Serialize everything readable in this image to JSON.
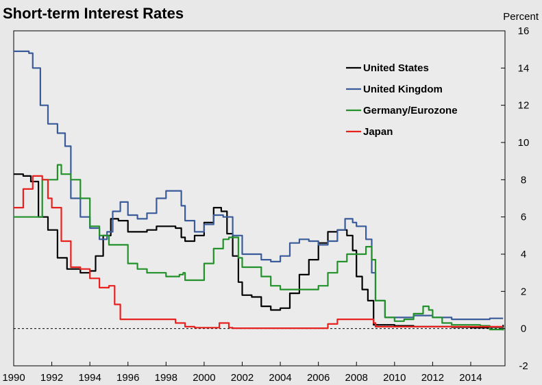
{
  "chart_data": {
    "type": "line",
    "title": "Short-term Interest Rates",
    "ylabel": "Percent",
    "xlabel": "",
    "xlim": [
      1990,
      2015.8
    ],
    "ylim": [
      -2,
      16
    ],
    "x_ticks": [
      1990,
      1992,
      1994,
      1996,
      1998,
      2000,
      2002,
      2004,
      2006,
      2008,
      2010,
      2012,
      2014
    ],
    "x_tick_labels": [
      "1990",
      "1992",
      "1994",
      "1996",
      "1998",
      "2000",
      "2002",
      "2004",
      "2006",
      "2008",
      "2010",
      "2012",
      "2014"
    ],
    "y_ticks": [
      16,
      14,
      12,
      10,
      8,
      6,
      4,
      2,
      0,
      -2
    ],
    "y_tick_labels": [
      "16",
      "14",
      "12",
      "10",
      "8",
      "6",
      "4",
      "2",
      "0",
      "-2"
    ],
    "grid": false,
    "zero_line": "dashed",
    "legend_position": "top-right",
    "series": [
      {
        "name": "United States",
        "color": "#000000",
        "x": [
          1990.0,
          1990.5,
          1990.9,
          1991.3,
          1991.8,
          1992.3,
          1992.8,
          1993.5,
          1994.0,
          1994.3,
          1994.7,
          1995.1,
          1995.5,
          1996.0,
          1996.5,
          1997.0,
          1997.5,
          1998.0,
          1998.5,
          1998.8,
          1999.0,
          1999.5,
          2000.0,
          2000.5,
          2000.9,
          2001.2,
          2001.5,
          2001.8,
          2002.0,
          2002.5,
          2003.0,
          2003.5,
          2004.0,
          2004.5,
          2005.0,
          2005.5,
          2006.0,
          2006.5,
          2007.0,
          2007.5,
          2007.8,
          2008.0,
          2008.3,
          2008.6,
          2008.9,
          2009.0,
          2010.0,
          2011.0,
          2012.0,
          2013.0,
          2014.0,
          2015.0,
          2015.7
        ],
        "y": [
          8.3,
          8.2,
          7.9,
          6.0,
          5.3,
          3.8,
          3.2,
          3.0,
          3.1,
          3.9,
          5.0,
          5.9,
          5.8,
          5.2,
          5.2,
          5.3,
          5.5,
          5.5,
          5.4,
          4.9,
          4.7,
          5.0,
          5.7,
          6.5,
          6.3,
          5.1,
          3.9,
          2.5,
          1.8,
          1.7,
          1.2,
          1.0,
          1.1,
          1.9,
          2.9,
          3.7,
          4.6,
          5.2,
          5.3,
          5.0,
          4.2,
          2.8,
          2.1,
          1.5,
          0.2,
          0.2,
          0.15,
          0.1,
          0.1,
          0.08,
          0.05,
          0.08,
          0.2
        ]
      },
      {
        "name": "United Kingdom",
        "color": "#3a5b9a",
        "x": [
          1990.0,
          1990.8,
          1991.0,
          1991.4,
          1991.8,
          1992.3,
          1992.7,
          1993.0,
          1993.5,
          1994.0,
          1994.5,
          1994.9,
          1995.2,
          1995.6,
          1996.0,
          1996.5,
          1997.0,
          1997.5,
          1998.0,
          1998.5,
          1998.8,
          1999.0,
          1999.5,
          2000.0,
          2000.5,
          2001.0,
          2001.5,
          2002.0,
          2002.5,
          2003.0,
          2003.5,
          2004.0,
          2004.5,
          2005.0,
          2005.5,
          2006.0,
          2006.5,
          2007.0,
          2007.4,
          2007.8,
          2008.0,
          2008.5,
          2008.8,
          2009.0,
          2009.5,
          2010.0,
          2011.0,
          2012.0,
          2013.0,
          2014.0,
          2015.0,
          2015.7
        ],
        "y": [
          14.9,
          14.8,
          14.0,
          12.0,
          11.0,
          10.5,
          9.8,
          7.0,
          6.0,
          5.4,
          4.8,
          5.2,
          6.3,
          6.8,
          6.1,
          5.9,
          6.2,
          7.0,
          7.4,
          7.4,
          6.6,
          5.8,
          5.2,
          5.6,
          6.1,
          6.0,
          5.0,
          4.0,
          4.0,
          3.7,
          3.6,
          3.9,
          4.6,
          4.8,
          4.7,
          4.5,
          4.7,
          5.3,
          5.9,
          5.7,
          5.5,
          4.8,
          3.0,
          1.5,
          0.6,
          0.6,
          0.7,
          0.6,
          0.5,
          0.5,
          0.55,
          0.55
        ]
      },
      {
        "name": "Germany/Eurozone",
        "color": "#22912a",
        "x": [
          1990.0,
          1990.5,
          1991.0,
          1991.5,
          1992.0,
          1992.3,
          1992.5,
          1993.0,
          1993.5,
          1994.0,
          1994.5,
          1995.0,
          1995.5,
          1996.0,
          1996.5,
          1997.0,
          1998.0,
          1998.7,
          1998.9,
          1999.0,
          1999.5,
          2000.0,
          2000.5,
          2001.0,
          2001.3,
          2001.8,
          2002.0,
          2002.5,
          2003.0,
          2003.5,
          2004.0,
          2005.0,
          2005.5,
          2006.0,
          2006.5,
          2007.0,
          2007.5,
          2008.0,
          2008.5,
          2008.8,
          2009.0,
          2009.5,
          2010.0,
          2010.5,
          2011.0,
          2011.5,
          2011.8,
          2012.0,
          2012.5,
          2013.0,
          2014.0,
          2014.5,
          2015.0,
          2015.7
        ],
        "y": [
          6.0,
          6.0,
          6.0,
          8.0,
          8.0,
          8.8,
          8.3,
          8.0,
          7.0,
          5.5,
          5.0,
          4.5,
          4.5,
          3.5,
          3.2,
          3.0,
          2.8,
          2.9,
          3.0,
          2.6,
          2.6,
          3.5,
          4.3,
          4.8,
          4.9,
          3.8,
          3.3,
          3.3,
          2.8,
          2.3,
          2.1,
          2.1,
          2.1,
          2.3,
          3.0,
          3.6,
          4.0,
          4.0,
          4.4,
          3.7,
          1.5,
          0.6,
          0.4,
          0.5,
          0.8,
          1.2,
          1.0,
          0.6,
          0.3,
          0.2,
          0.2,
          0.15,
          -0.05,
          -0.1
        ]
      },
      {
        "name": "Japan",
        "color": "#e8201e",
        "x": [
          1990.0,
          1990.5,
          1991.0,
          1991.5,
          1991.8,
          1992.0,
          1992.5,
          1993.0,
          1993.5,
          1994.0,
          1994.5,
          1995.0,
          1995.3,
          1995.6,
          1996.0,
          1997.0,
          1998.0,
          1998.5,
          1999.0,
          1999.5,
          2000.0,
          2000.8,
          2001.3,
          2001.5,
          2002.0,
          2003.0,
          2004.0,
          2005.0,
          2006.0,
          2006.5,
          2007.0,
          2008.0,
          2008.9,
          2009.0,
          2010.0,
          2012.0,
          2014.0,
          2015.7
        ],
        "y": [
          6.5,
          7.5,
          8.2,
          8.0,
          7.0,
          6.5,
          4.7,
          3.3,
          3.2,
          2.7,
          2.2,
          2.3,
          1.3,
          0.5,
          0.5,
          0.5,
          0.5,
          0.3,
          0.1,
          0.05,
          0.05,
          0.3,
          0.05,
          0.02,
          0.02,
          0.02,
          0.02,
          0.02,
          0.02,
          0.25,
          0.5,
          0.5,
          0.3,
          0.1,
          0.1,
          0.1,
          0.1,
          0.1
        ]
      }
    ]
  }
}
